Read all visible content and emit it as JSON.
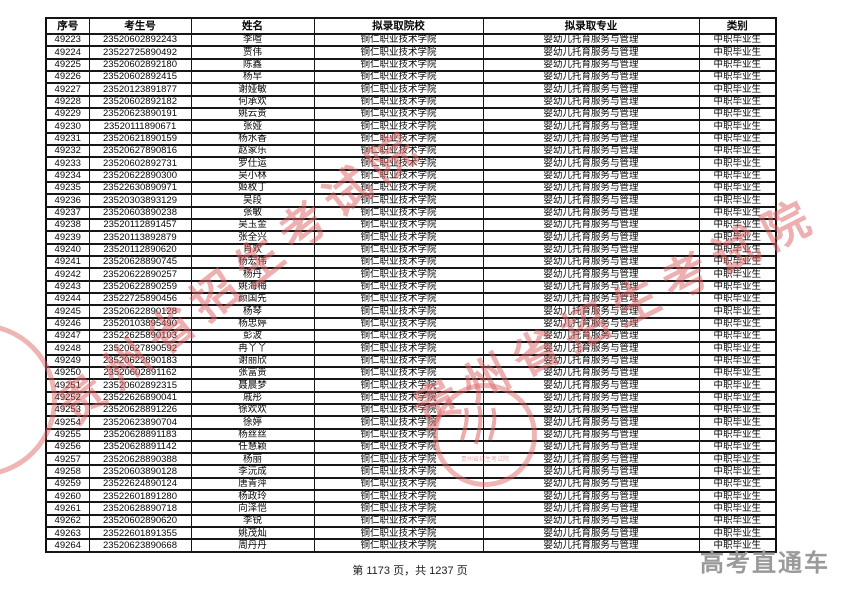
{
  "page": {
    "footer": "第 1173 页，共 1237 页",
    "brand_watermark": "高考直通车",
    "red_watermark": "贵州省招生考试院",
    "colors": {
      "red_watermark": "#db6060",
      "brand_gray": "#9a9a9a",
      "table_border": "#161616",
      "text": "#050505",
      "background": "#ffffff"
    }
  },
  "table": {
    "headers": [
      "序号",
      "考生号",
      "姓名",
      "拟录取院校",
      "拟录取专业",
      "类别"
    ],
    "rows": [
      [
        "49223",
        "23520602892243",
        "李喧",
        "铜仁职业技术学院",
        "婴幼儿托育服务与管理",
        "中职毕业生"
      ],
      [
        "49224",
        "23522725890492",
        "贾伟",
        "铜仁职业技术学院",
        "婴幼儿托育服务与管理",
        "中职毕业生"
      ],
      [
        "49225",
        "23520602892180",
        "陈鑫",
        "铜仁职业技术学院",
        "婴幼儿托育服务与管理",
        "中职毕业生"
      ],
      [
        "49226",
        "23520602892415",
        "杨早",
        "铜仁职业技术学院",
        "婴幼儿托育服务与管理",
        "中职毕业生"
      ],
      [
        "49227",
        "23520123891877",
        "谢娅敏",
        "铜仁职业技术学院",
        "婴幼儿托育服务与管理",
        "中职毕业生"
      ],
      [
        "49228",
        "23520602892182",
        "何承欢",
        "铜仁职业技术学院",
        "婴幼儿托育服务与管理",
        "中职毕业生"
      ],
      [
        "49229",
        "23520623890191",
        "姚云贵",
        "铜仁职业技术学院",
        "婴幼儿托育服务与管理",
        "中职毕业生"
      ],
      [
        "49230",
        "23520111890671",
        "张娅",
        "铜仁职业技术学院",
        "婴幼儿托育服务与管理",
        "中职毕业生"
      ],
      [
        "49231",
        "23520621890159",
        "杨水香",
        "铜仁职业技术学院",
        "婴幼儿托育服务与管理",
        "中职毕业生"
      ],
      [
        "49232",
        "23520627890816",
        "赵家乐",
        "铜仁职业技术学院",
        "婴幼儿托育服务与管理",
        "中职毕业生"
      ],
      [
        "49233",
        "23520602892731",
        "罗仕运",
        "铜仁职业技术学院",
        "婴幼儿托育服务与管理",
        "中职毕业生"
      ],
      [
        "49234",
        "23520622890300",
        "吴小林",
        "铜仁职业技术学院",
        "婴幼儿托育服务与管理",
        "中职毕业生"
      ],
      [
        "49235",
        "23522630890971",
        "姬枚丁",
        "铜仁职业技术学院",
        "婴幼儿托育服务与管理",
        "中职毕业生"
      ],
      [
        "49236",
        "23520303893129",
        "吴段",
        "铜仁职业技术学院",
        "婴幼儿托育服务与管理",
        "中职毕业生"
      ],
      [
        "49237",
        "23520603890238",
        "张敏",
        "铜仁职业技术学院",
        "婴幼儿托育服务与管理",
        "中职毕业生"
      ],
      [
        "49238",
        "23520112891457",
        "吴玉金",
        "铜仁职业技术学院",
        "婴幼儿托育服务与管理",
        "中职毕业生"
      ],
      [
        "49239",
        "23520113892879",
        "张全兴",
        "铜仁职业技术学院",
        "婴幼儿托育服务与管理",
        "中职毕业生"
      ],
      [
        "49240",
        "23520112890620",
        "肖欢",
        "铜仁职业技术学院",
        "婴幼儿托育服务与管理",
        "中职毕业生"
      ],
      [
        "49241",
        "23520628890745",
        "杨宏伟",
        "铜仁职业技术学院",
        "婴幼儿托育服务与管理",
        "中职毕业生"
      ],
      [
        "49242",
        "23520622890257",
        "杨丹",
        "铜仁职业技术学院",
        "婴幼儿托育服务与管理",
        "中职毕业生"
      ],
      [
        "49243",
        "23520622890259",
        "姚海梅",
        "铜仁职业技术学院",
        "婴幼儿托育服务与管理",
        "中职毕业生"
      ],
      [
        "49244",
        "23522725890456",
        "颜国先",
        "铜仁职业技术学院",
        "婴幼儿托育服务与管理",
        "中职毕业生"
      ],
      [
        "49245",
        "23520622890128",
        "杨琴",
        "铜仁职业技术学院",
        "婴幼儿托育服务与管理",
        "中职毕业生"
      ],
      [
        "49246",
        "23520103895490",
        "杨忠婷",
        "铜仁职业技术学院",
        "婴幼儿托育服务与管理",
        "中职毕业生"
      ],
      [
        "49247",
        "23522625890103",
        "彭波",
        "铜仁职业技术学院",
        "婴幼儿托育服务与管理",
        "中职毕业生"
      ],
      [
        "49248",
        "23520627890592",
        "冉丫丫",
        "铜仁职业技术学院",
        "婴幼儿托育服务与管理",
        "中职毕业生"
      ],
      [
        "49249",
        "23520622890183",
        "谢丽欣",
        "铜仁职业技术学院",
        "婴幼儿托育服务与管理",
        "中职毕业生"
      ],
      [
        "49250",
        "23520602891162",
        "张富贵",
        "铜仁职业技术学院",
        "婴幼儿托育服务与管理",
        "中职毕业生"
      ],
      [
        "49251",
        "23520602892315",
        "聂晨梦",
        "铜仁职业技术学院",
        "婴幼儿托育服务与管理",
        "中职毕业生"
      ],
      [
        "49252",
        "23522626890041",
        "戚彤",
        "铜仁职业技术学院",
        "婴幼儿托育服务与管理",
        "中职毕业生"
      ],
      [
        "49253",
        "23520628891226",
        "徐欢欢",
        "铜仁职业技术学院",
        "婴幼儿托育服务与管理",
        "中职毕业生"
      ],
      [
        "49254",
        "23520623890704",
        "徐婷",
        "铜仁职业技术学院",
        "婴幼儿托育服务与管理",
        "中职毕业生"
      ],
      [
        "49255",
        "23520628891183",
        "杨丝丝",
        "铜仁职业技术学院",
        "婴幼儿托育服务与管理",
        "中职毕业生"
      ],
      [
        "49256",
        "23520628891142",
        "任慧颖",
        "铜仁职业技术学院",
        "婴幼儿托育服务与管理",
        "中职毕业生"
      ],
      [
        "49257",
        "23520628890388",
        "杨丽",
        "铜仁职业技术学院",
        "婴幼儿托育服务与管理",
        "中职毕业生"
      ],
      [
        "49258",
        "23520603890128",
        "李沅成",
        "铜仁职业技术学院",
        "婴幼儿托育服务与管理",
        "中职毕业生"
      ],
      [
        "49259",
        "23522624890124",
        "唐青萍",
        "铜仁职业技术学院",
        "婴幼儿托育服务与管理",
        "中职毕业生"
      ],
      [
        "49260",
        "23522601891280",
        "杨政玲",
        "铜仁职业技术学院",
        "婴幼儿托育服务与管理",
        "中职毕业生"
      ],
      [
        "49261",
        "23520628890718",
        "向泽恺",
        "铜仁职业技术学院",
        "婴幼儿托育服务与管理",
        "中职毕业生"
      ],
      [
        "49262",
        "23520602890620",
        "李锐",
        "铜仁职业技术学院",
        "婴幼儿托育服务与管理",
        "中职毕业生"
      ],
      [
        "49263",
        "23522601891355",
        "姚茂灿",
        "铜仁职业技术学院",
        "婴幼儿托育服务与管理",
        "中职毕业生"
      ],
      [
        "49264",
        "23520623890668",
        "周丹丹",
        "铜仁职业技术学院",
        "婴幼儿托育服务与管理",
        "中职毕业生"
      ]
    ]
  }
}
